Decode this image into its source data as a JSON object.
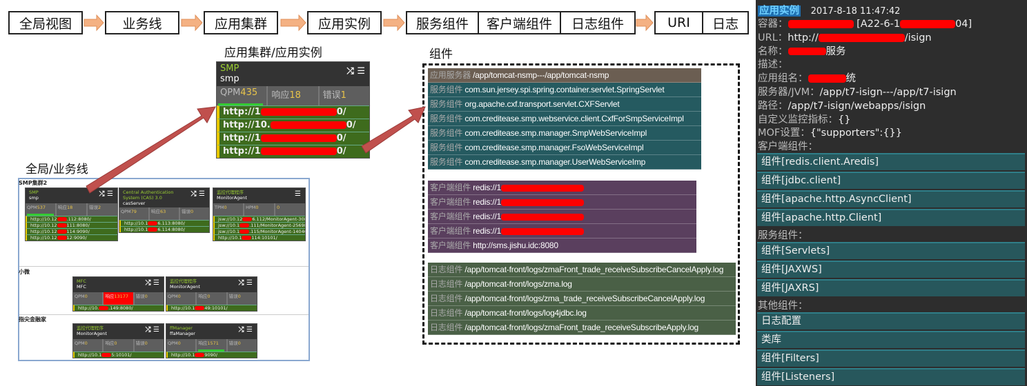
{
  "breadcrumb": [
    "全局视图",
    "业务线",
    "应用集群",
    "应用实例",
    "服务组件",
    "客户端组件",
    "日志组件",
    "URI",
    "日志"
  ],
  "colors": {
    "arrow_orange": "#f4b183",
    "arrow_red": "#c0504d",
    "server_row": "#6b5e52",
    "service_row": "#255a60",
    "client_row": "#5a3f5e",
    "log_row": "#4a6046",
    "url_row": "#3e6b1d",
    "panel_bg": "#2d2d2d"
  },
  "cluster_title": "应用集群/应用实例",
  "components_title": "组件",
  "global_title": "全局/业务线",
  "main_card": {
    "title": "SMP",
    "subtitle": "smp",
    "metrics": [
      {
        "label": "QPM",
        "value": "435"
      },
      {
        "label": "响应",
        "value": "18"
      },
      {
        "label": "错误",
        "value": "1"
      }
    ],
    "urls": [
      {
        "prefix": "http://1",
        "suffix": "0/"
      },
      {
        "prefix": "http://10.",
        "suffix": "0/"
      },
      {
        "prefix": "http://1",
        "suffix": "0/"
      },
      {
        "prefix": "http://1",
        "suffix": "0/"
      }
    ]
  },
  "components": {
    "server": {
      "label": "应用服务器",
      "value": "/app/tomcat-nsmp---/app/tomcat-nsmp"
    },
    "services": [
      {
        "label": "服务组件",
        "value": "com.sun.jersey.spi.spring.container.servlet.SpringServlet"
      },
      {
        "label": "服务组件",
        "value": "org.apache.cxf.transport.servlet.CXFServlet"
      },
      {
        "label": "服务组件",
        "value": "com.creditease.smp.webservice.client.CxfForSmpServiceImpl"
      },
      {
        "label": "服务组件",
        "value": "com.creditease.smp.manager.SmpWebServiceImpl"
      },
      {
        "label": "服务组件",
        "value": "com.creditease.smp.manager.FsoWebServiceImpl"
      },
      {
        "label": "服务组件",
        "value": "com.creditease.smp.manager.UserWebServiceImp"
      }
    ],
    "clients": [
      {
        "label": "客户端组件",
        "value": "redis://1",
        "redacted": true
      },
      {
        "label": "客户端组件",
        "value": "redis://1",
        "redacted": true
      },
      {
        "label": "客户端组件",
        "value": "redis://1",
        "redacted": true
      },
      {
        "label": "客户端组件",
        "value": "redis://1",
        "redacted": true
      },
      {
        "label": "客户端组件",
        "value": "http://sms.jishu.idc:8080"
      }
    ],
    "logs": [
      {
        "label": "日志组件",
        "value": "/app/tomcat-front/logs/zmaFront_trade_receiveSubscribeCancelApply.log"
      },
      {
        "label": "日志组件",
        "value": "/app/tomcat-front/logs/zma.log"
      },
      {
        "label": "日志组件",
        "value": "/app/tomcat-front/logs/zma_trade_receiveSubscribeCancelApply.log"
      },
      {
        "label": "日志组件",
        "value": "/app/tomcat-front/logs/log4jdbc.log"
      },
      {
        "label": "日志组件",
        "value": "/app/tomcat-front/logs/zmaFront_trade_receiveSubscribeApply.log"
      }
    ]
  },
  "global": {
    "sections": [
      "SMP集群2",
      "小微",
      "指尖金融家"
    ],
    "cards": [
      {
        "title": "SMP",
        "subtitle": "smp",
        "metrics": [
          {
            "label": "QPM",
            "value": "537"
          },
          {
            "label": "响应",
            "value": "18"
          },
          {
            "label": "错误",
            "value": "2"
          }
        ],
        "urls": [
          {
            "prefix": "http://10.12",
            "suffix": ".112:8080/"
          },
          {
            "prefix": "http://10.12",
            "suffix": "111:8080/"
          },
          {
            "prefix": "http://10.12",
            "suffix": "114:9090/"
          },
          {
            "prefix": "http://10.12",
            "suffix": "12:9090/"
          }
        ]
      },
      {
        "title": "Central Authentication System (CAS) 3.0",
        "subtitle": "casServer",
        "metrics": [
          {
            "label": "QPM",
            "value": "79"
          },
          {
            "label": "响应",
            "value": "63"
          },
          {
            "label": "错误",
            "value": "0"
          }
        ],
        "urls": [
          {
            "prefix": "http://10.1",
            "suffix": "6.113:8080/"
          },
          {
            "prefix": "http://10.1",
            "suffix": "6.114:8080/"
          }
        ]
      },
      {
        "title": "监控代理程序",
        "subtitle": "MonitorAgent",
        "metrics": [
          {
            "label": "TPM",
            "value": "0"
          },
          {
            "label": "HPM",
            "value": "0"
          },
          {
            "label": "",
            "value": "0"
          }
        ],
        "urls": [
          {
            "prefix": "jsw://10.12",
            "suffix": "6.112/MonitorAgent-30856"
          },
          {
            "prefix": "jsw://10.1",
            "suffix": ".111/MonitorAgent-25698"
          },
          {
            "prefix": "jsw://10.1",
            "suffix": ".115/MonitorAgent-14046"
          },
          {
            "prefix": "http://10.1",
            "suffix": "114:10101/"
          }
        ]
      },
      {
        "title": "MFC",
        "subtitle": "MFC",
        "metrics": [
          {
            "label": "QPM",
            "value": "0"
          },
          {
            "label": "响应",
            "value": "13177"
          },
          {
            "label": "错误",
            "value": "0"
          }
        ],
        "urls": [
          {
            "prefix": "http://10.",
            "suffix": ".149:8080/"
          }
        ]
      },
      {
        "title": "监控代理程序",
        "subtitle": "MonitorAgent",
        "metrics": [
          {
            "label": "QPM",
            "value": "0"
          },
          {
            "label": "响应",
            "value": "0"
          },
          {
            "label": "错误",
            "value": "0"
          }
        ],
        "urls": [
          {
            "prefix": "http://10.1",
            "suffix": "49:10101/"
          }
        ]
      },
      {
        "title": "监控代理程序",
        "subtitle": "MonitorAgent",
        "metrics": [
          {
            "label": "QPM",
            "value": "0"
          },
          {
            "label": "响应",
            "value": "0"
          },
          {
            "label": "错误",
            "value": "0"
          }
        ],
        "urls": [
          {
            "prefix": "http://10.1",
            "suffix": "5:10101/"
          }
        ]
      },
      {
        "title": "ffManager",
        "subtitle": "ffaManager",
        "metrics": [
          {
            "label": "QPM",
            "value": "0"
          },
          {
            "label": "响应",
            "value": "1571"
          },
          {
            "label": "错误",
            "value": "0"
          }
        ],
        "urls": [
          {
            "prefix": "http://10.1",
            "suffix": "9090/"
          }
        ]
      }
    ]
  },
  "instance_panel": {
    "title": "应用实例",
    "time": "2017-8-18 11:47:42",
    "fields": [
      {
        "label": "容器：",
        "value": "[A22-6-1",
        "tail": "04]",
        "redacted": true
      },
      {
        "label": "URL：",
        "value": "http://",
        "tail": "/isign",
        "redacted": true
      },
      {
        "label": "名称：",
        "value": "",
        "tail": "服务",
        "redacted": true
      },
      {
        "label": "描述：",
        "value": ""
      },
      {
        "label": "应用组名：",
        "value": "",
        "tail": "统",
        "redacted": true
      },
      {
        "label": "服务器/JVM：",
        "value": "/app/t7-isign---/app/t7-isign"
      },
      {
        "label": "路径：",
        "value": "/app/t7-isign/webapps/isign"
      },
      {
        "label": "自定义监控指标：",
        "value": "{}"
      },
      {
        "label": "MOF设置：",
        "value": "{\"supporters\":{}}"
      }
    ],
    "client_label": "客户端组件：",
    "client_items": [
      "组件[redis.client.Aredis]",
      "组件[jdbc.client]",
      "组件[apache.http.AsyncClient]",
      "组件[apache.http.Client]"
    ],
    "service_label": "服务组件：",
    "service_items": [
      "组件[Servlets]",
      "组件[JAXWS]",
      "组件[JAXRS]"
    ],
    "other_label": "其他组件：",
    "other_items": [
      "日志配置",
      "类库",
      "组件[Filters]",
      "组件[Listeners]"
    ]
  }
}
